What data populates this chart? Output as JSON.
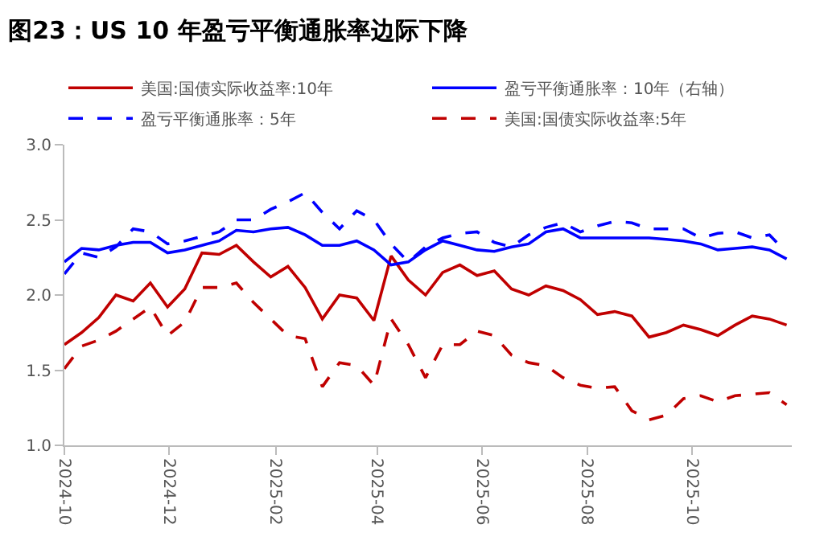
{
  "chart_data": {
    "type": "line",
    "title": "图23：US 10 年盈亏平衡通胀率边际下降",
    "x": [
      "2024-10-01",
      "2024-10-11",
      "2024-10-21",
      "2024-10-31",
      "2024-11-10",
      "2024-11-20",
      "2024-11-30",
      "2024-12-10",
      "2024-12-20",
      "2024-12-30",
      "2025-01-09",
      "2025-01-19",
      "2025-01-29",
      "2025-02-08",
      "2025-02-18",
      "2025-02-28",
      "2025-03-10",
      "2025-03-20",
      "2025-03-30",
      "2025-04-09",
      "2025-04-19",
      "2025-04-29",
      "2025-05-09",
      "2025-05-19",
      "2025-05-29",
      "2025-06-08",
      "2025-06-18",
      "2025-06-28",
      "2025-07-08",
      "2025-07-18",
      "2025-07-28",
      "2025-08-07",
      "2025-08-17",
      "2025-08-27",
      "2025-09-06",
      "2025-09-16",
      "2025-09-26",
      "2025-10-06",
      "2025-10-16",
      "2025-10-26",
      "2025-11-05",
      "2025-11-15",
      "2025-11-25"
    ],
    "series": [
      {
        "name": "美国:国债实际收益率:10年",
        "color": "#c00000",
        "line_style": "solid",
        "values": [
          1.67,
          1.75,
          1.85,
          2.0,
          1.96,
          2.08,
          1.92,
          2.04,
          2.28,
          2.27,
          2.33,
          2.22,
          2.12,
          2.19,
          2.05,
          1.84,
          2.0,
          1.98,
          1.83,
          2.26,
          2.1,
          2.0,
          2.15,
          2.2,
          2.13,
          2.16,
          2.04,
          2.0,
          2.06,
          2.03,
          1.97,
          1.87,
          1.89,
          1.86,
          1.72,
          1.75,
          1.8,
          1.77,
          1.73,
          1.8,
          1.86,
          1.84,
          1.8
        ]
      },
      {
        "name": "盈亏平衡通胀率：10年（右轴）",
        "color": "#0000ff",
        "line_style": "solid",
        "values": [
          2.22,
          2.31,
          2.3,
          2.33,
          2.35,
          2.35,
          2.28,
          2.3,
          2.33,
          2.36,
          2.43,
          2.42,
          2.44,
          2.45,
          2.4,
          2.33,
          2.33,
          2.36,
          2.3,
          2.2,
          2.22,
          2.3,
          2.36,
          2.33,
          2.3,
          2.29,
          2.32,
          2.34,
          2.42,
          2.44,
          2.38,
          2.38,
          2.38,
          2.38,
          2.38,
          2.37,
          2.36,
          2.34,
          2.3,
          2.31,
          2.32,
          2.3,
          2.24
        ]
      },
      {
        "name": "盈亏平衡通胀率：5年",
        "color": "#0000ff",
        "line_style": "dashed",
        "values": [
          2.14,
          2.28,
          2.25,
          2.32,
          2.44,
          2.42,
          2.34,
          2.36,
          2.39,
          2.42,
          2.5,
          2.5,
          2.57,
          2.62,
          2.68,
          2.55,
          2.44,
          2.56,
          2.5,
          2.34,
          2.22,
          2.32,
          2.38,
          2.41,
          2.42,
          2.35,
          2.32,
          2.4,
          2.45,
          2.48,
          2.42,
          2.46,
          2.49,
          2.48,
          2.44,
          2.44,
          2.44,
          2.38,
          2.41,
          2.42,
          2.38,
          2.4,
          2.28
        ]
      },
      {
        "name": "美国:国债实际收益率:5年",
        "color": "#c00000",
        "line_style": "dashed",
        "values": [
          1.51,
          1.66,
          1.7,
          1.76,
          1.84,
          1.92,
          1.73,
          1.82,
          2.05,
          2.05,
          2.08,
          1.95,
          1.84,
          1.73,
          1.71,
          1.39,
          1.55,
          1.53,
          1.4,
          1.84,
          1.67,
          1.45,
          1.67,
          1.67,
          1.76,
          1.73,
          1.6,
          1.55,
          1.53,
          1.45,
          1.4,
          1.38,
          1.39,
          1.23,
          1.17,
          1.2,
          1.31,
          1.33,
          1.29,
          1.33,
          1.34,
          1.35,
          1.27
        ]
      }
    ],
    "xlim": [
      "2024-10-01",
      "2025-11-28"
    ],
    "xticks": [
      {
        "value": "2024-10-01",
        "label": "2024-10"
      },
      {
        "value": "2024-12-01",
        "label": "2024-12"
      },
      {
        "value": "2025-02-01",
        "label": "2025-02"
      },
      {
        "value": "2025-04-01",
        "label": "2025-04"
      },
      {
        "value": "2025-06-01",
        "label": "2025-06"
      },
      {
        "value": "2025-08-01",
        "label": "2025-08"
      },
      {
        "value": "2025-10-01",
        "label": "2025-10"
      }
    ],
    "ylim": [
      1.0,
      3.0
    ],
    "yticks": [
      {
        "value": 1,
        "label": "1.0"
      },
      {
        "value": 1.5,
        "label": "1.5"
      },
      {
        "value": 2,
        "label": "2.0"
      },
      {
        "value": 2.5,
        "label": "2.5"
      },
      {
        "value": 3,
        "label": "3.0"
      }
    ],
    "grid": false,
    "legend": "top",
    "marker": "none"
  }
}
